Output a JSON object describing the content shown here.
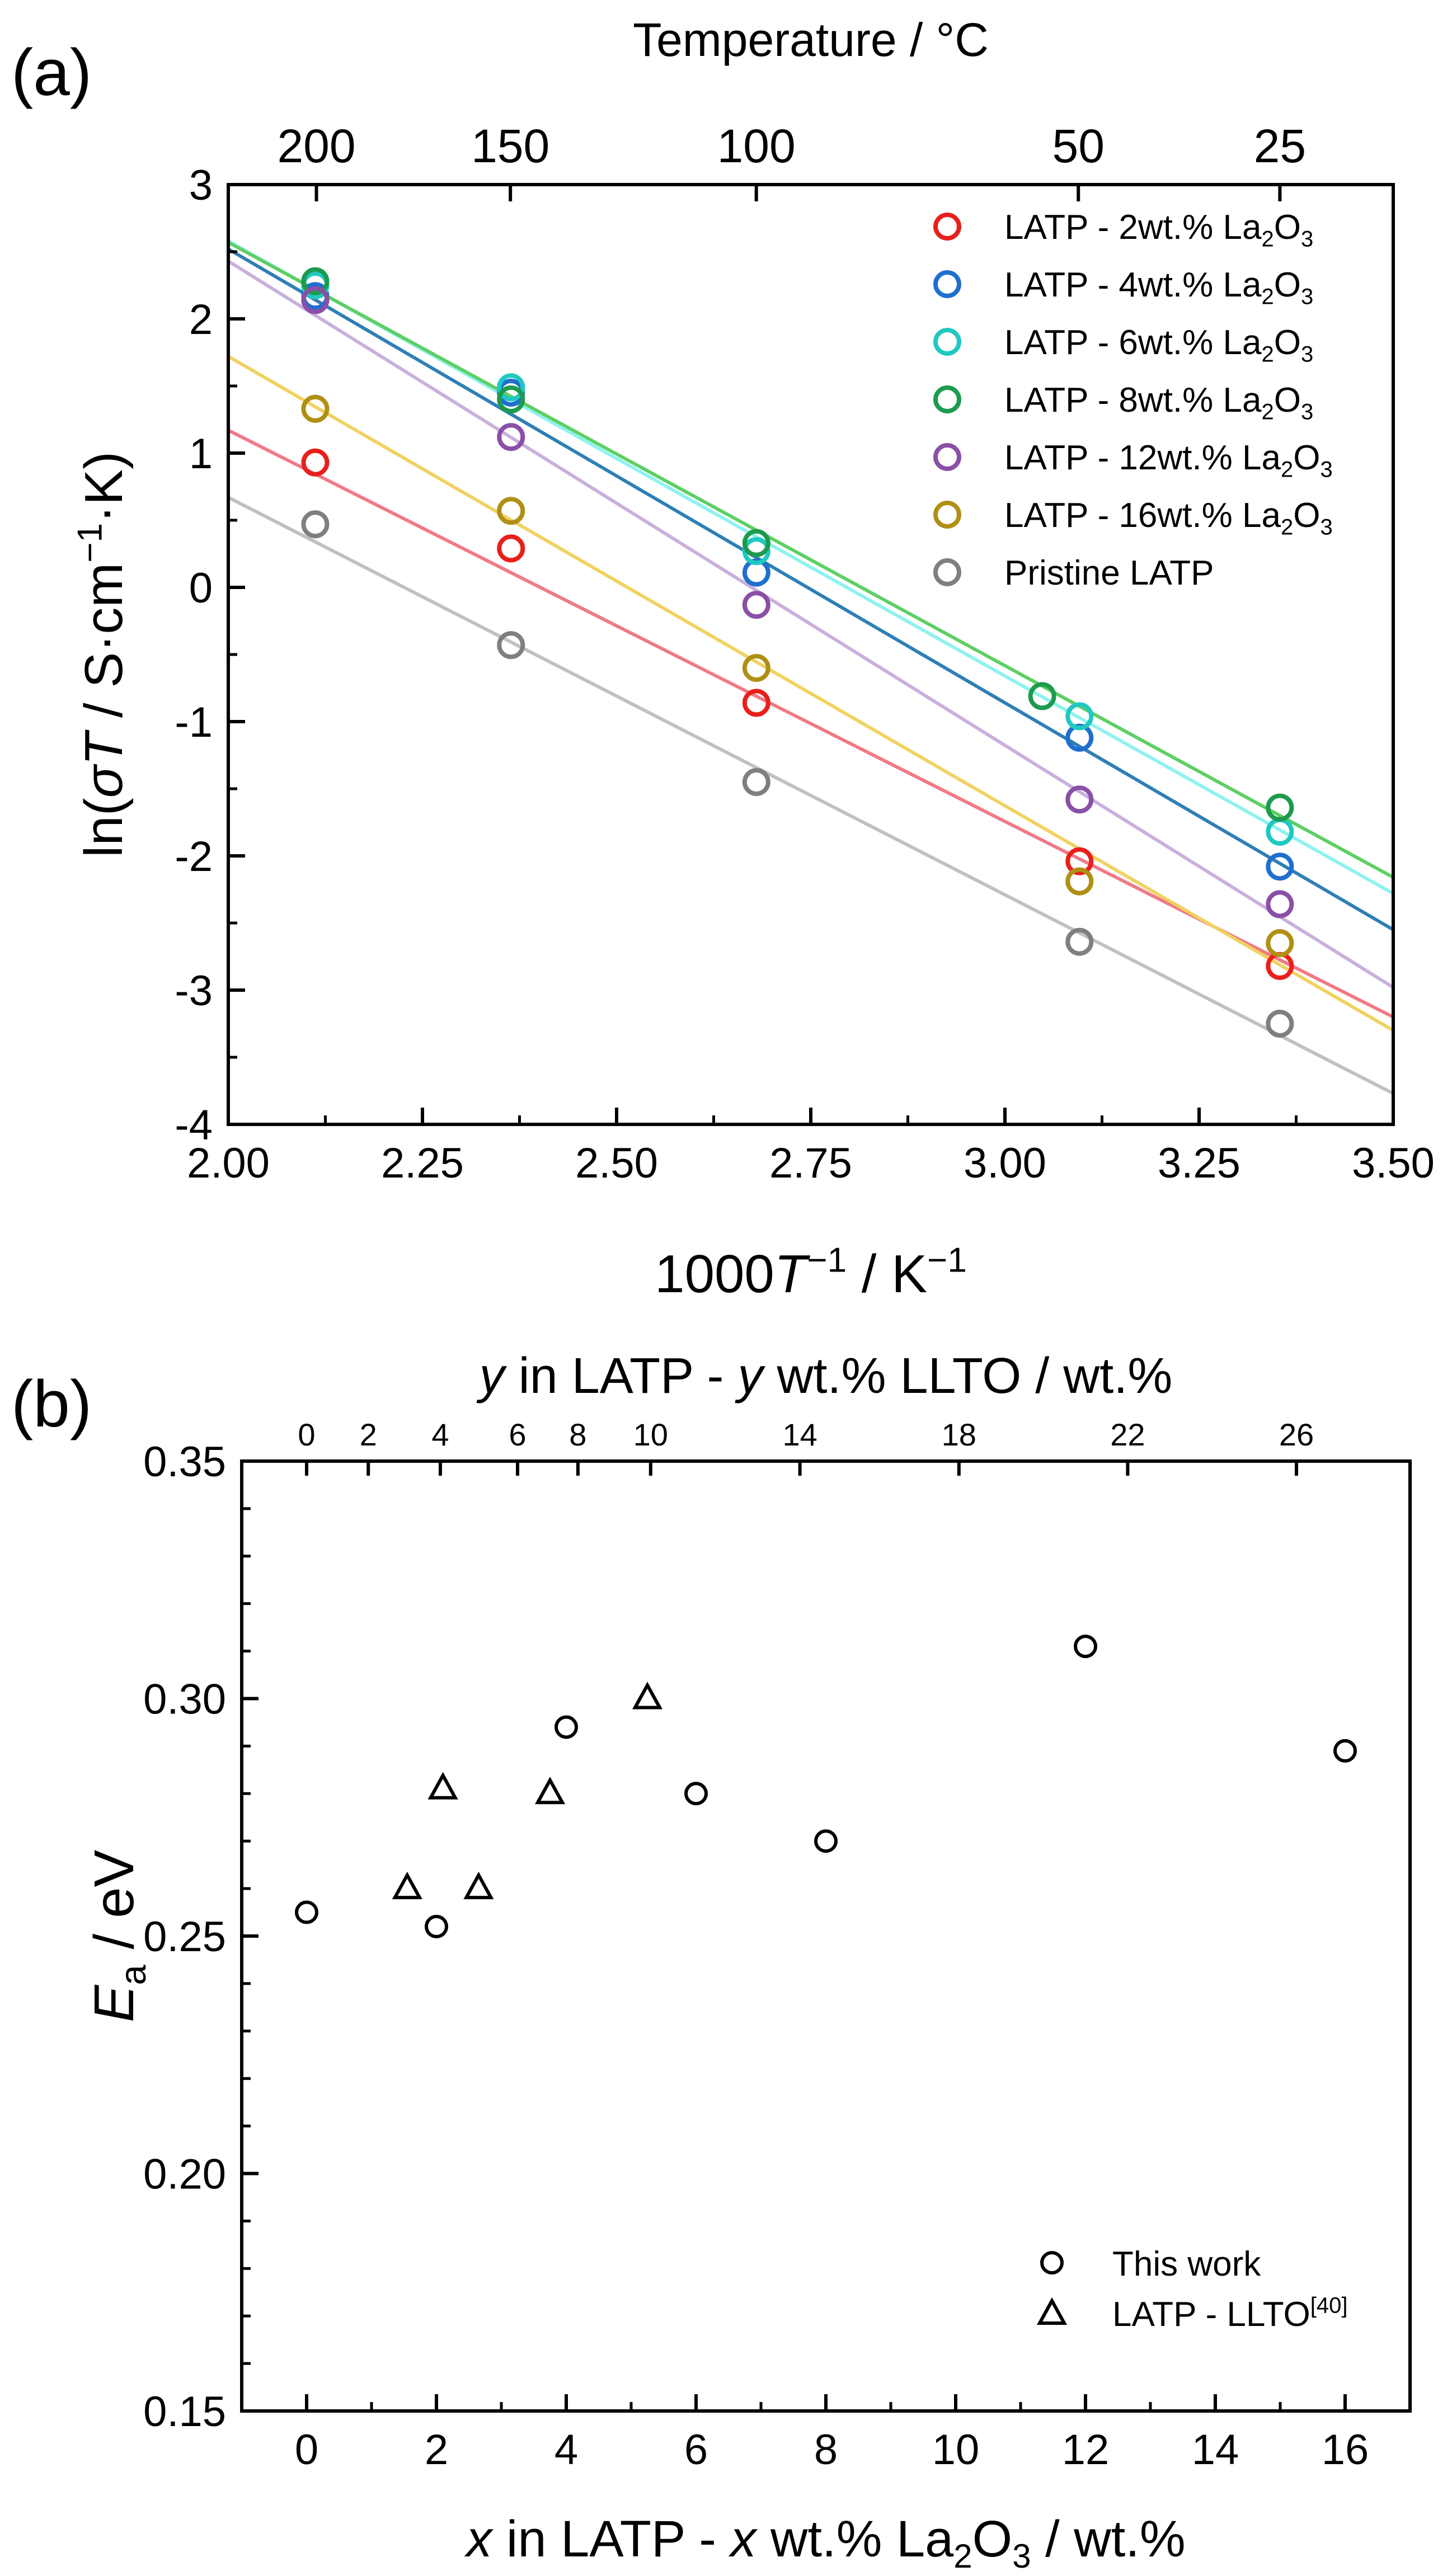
{
  "colors": {
    "axis": "#000000"
  },
  "chart_data": [
    {
      "panel_label": "(a)",
      "type": "scatter",
      "xlabel_parts": [
        "1000",
        "T",
        "−1",
        " / K",
        "−1"
      ],
      "ylabel_parts": [
        "ln(",
        "σT",
        " / S·cm",
        "−1",
        "·K)"
      ],
      "top_axis_label": "Temperature / °C",
      "xlim": [
        2.0,
        3.5
      ],
      "ylim": [
        -4,
        3
      ],
      "xticks": [
        "2.00",
        "2.25",
        "2.50",
        "2.75",
        "3.00",
        "3.25",
        "3.50"
      ],
      "yticks": [
        "-4",
        "-3",
        "-2",
        "-1",
        "0",
        "1",
        "2",
        "3"
      ],
      "top_ticks": [
        {
          "label": "200",
          "celsius": 200
        },
        {
          "label": "150",
          "celsius": 150
        },
        {
          "label": "100",
          "celsius": 100
        },
        {
          "label": "50",
          "celsius": 50
        },
        {
          "label": "25",
          "celsius": 25
        }
      ],
      "series": [
        {
          "name_parts": [
            "LATP - 2wt.% La",
            "2",
            "O",
            "3"
          ],
          "color": "#e8201c",
          "line_color": "#f07a86",
          "x": [
            2.112,
            2.364,
            2.68,
            3.096,
            3.354
          ],
          "y": [
            0.93,
            0.29,
            -0.86,
            -2.04,
            -2.82
          ],
          "fit": {
            "x": [
              2.0,
              3.5
            ],
            "y": [
              1.17,
              -3.2
            ]
          }
        },
        {
          "name_parts": [
            "LATP - 4wt.% La",
            "2",
            "O",
            "3"
          ],
          "color": "#1f6fcf",
          "line_color": "#2f7fb6",
          "x": [
            2.112,
            2.364,
            2.68,
            3.096,
            3.354
          ],
          "y": [
            2.17,
            1.45,
            0.11,
            -1.12,
            -2.08
          ],
          "fit": {
            "x": [
              2.0,
              3.5
            ],
            "y": [
              2.52,
              -2.55
            ]
          }
        },
        {
          "name_parts": [
            "LATP - 6wt.% La",
            "2",
            "O",
            "3"
          ],
          "color": "#1fc9c2",
          "line_color": "#8ff2ef",
          "x": [
            2.112,
            2.364,
            2.68,
            3.096,
            3.354
          ],
          "y": [
            2.25,
            1.49,
            0.27,
            -0.96,
            -1.82
          ],
          "fit": {
            "x": [
              2.0,
              3.5
            ],
            "y": [
              2.58,
              -2.28
            ]
          }
        },
        {
          "name_parts": [
            "LATP - 8wt.% La",
            "2",
            "O",
            "3"
          ],
          "color": "#1e9a4e",
          "line_color": "#5ecf63",
          "x": [
            2.112,
            2.364,
            2.68,
            3.048,
            3.354
          ],
          "y": [
            2.28,
            1.4,
            0.33,
            -0.81,
            -1.64
          ],
          "fit": {
            "x": [
              2.0,
              3.5
            ],
            "y": [
              2.57,
              -2.16
            ]
          }
        },
        {
          "name_parts": [
            "LATP - 12wt.% La",
            "2",
            "O",
            "3"
          ],
          "color": "#8a4fa6",
          "line_color": "#c9b0dc",
          "x": [
            2.112,
            2.364,
            2.68,
            3.096,
            3.354
          ],
          "y": [
            2.14,
            1.12,
            -0.13,
            -1.58,
            -2.36
          ],
          "fit": {
            "x": [
              2.0,
              3.5
            ],
            "y": [
              2.43,
              -2.98
            ]
          }
        },
        {
          "name_parts": [
            "LATP - 16wt.% La",
            "2",
            "O",
            "3"
          ],
          "color": "#b08f15",
          "line_color": "#f0d260",
          "x": [
            2.112,
            2.364,
            2.68,
            3.096,
            3.354
          ],
          "y": [
            1.33,
            0.57,
            -0.6,
            -2.19,
            -2.65
          ],
          "fit": {
            "x": [
              2.0,
              3.5
            ],
            "y": [
              1.72,
              -3.3
            ]
          }
        },
        {
          "name_parts": [
            "Pristine LATP"
          ],
          "color": "#7f7f7f",
          "line_color": "#c0c0c0",
          "x": [
            2.112,
            2.364,
            2.68,
            3.096,
            3.354
          ],
          "y": [
            0.47,
            -0.43,
            -1.45,
            -2.64,
            -3.25
          ],
          "fit": {
            "x": [
              2.0,
              3.5
            ],
            "y": [
              0.67,
              -3.77
            ]
          }
        }
      ]
    },
    {
      "panel_label": "(b)",
      "type": "scatter",
      "xlabel_parts": [
        "x",
        " in LATP - ",
        "x",
        " wt.% La",
        "2",
        "O",
        "3",
        " / wt.%"
      ],
      "ylabel_parts": [
        "E",
        "a",
        " / eV"
      ],
      "top_axis_label_parts": [
        "y",
        " in LATP - ",
        "y",
        " wt.% LLTO / wt.%"
      ],
      "xlim": [
        -1,
        17
      ],
      "ylim": [
        0.15,
        0.35
      ],
      "xticks": [
        "0",
        "2",
        "4",
        "6",
        "8",
        "10",
        "12",
        "14",
        "16"
      ],
      "yticks": [
        "0.15",
        "0.20",
        "0.25",
        "0.30",
        "0.35"
      ],
      "top_ticks": [
        {
          "label": "0",
          "x": 0.0
        },
        {
          "label": "2",
          "x": 0.95
        },
        {
          "label": "4",
          "x": 2.06
        },
        {
          "label": "6",
          "x": 3.25
        },
        {
          "label": "8",
          "x": 4.18
        },
        {
          "label": "10",
          "x": 5.3
        },
        {
          "label": "14",
          "x": 7.6
        },
        {
          "label": "18",
          "x": 10.05
        },
        {
          "label": "22",
          "x": 12.65
        },
        {
          "label": "26",
          "x": 15.25
        }
      ],
      "series": [
        {
          "name_parts": [
            "This work"
          ],
          "marker": "circle",
          "x": [
            0,
            2,
            4,
            6,
            8,
            12,
            16
          ],
          "y": [
            0.255,
            0.252,
            0.294,
            0.28,
            0.27,
            0.311,
            0.289
          ]
        },
        {
          "name_parts": [
            "LATP - LLTO",
            "[40]"
          ],
          "marker": "triangle",
          "x": [
            1.55,
            2.1,
            2.65,
            3.75,
            5.25
          ],
          "y": [
            0.26,
            0.281,
            0.26,
            0.28,
            0.3
          ]
        }
      ]
    }
  ]
}
